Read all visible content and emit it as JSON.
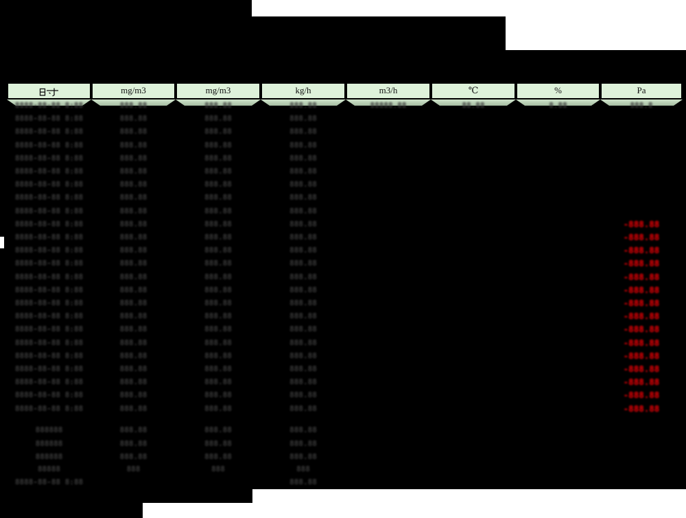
{
  "report": {
    "values_obscured": true,
    "colors": {
      "background": "#000000",
      "header_bg": "#def2da",
      "subheader_bg": "#aec5aa",
      "border": "#000000",
      "blob_text": "#3b3b3b",
      "alarm_text": "#fa0106",
      "blank_patch": "#ffffff"
    },
    "table": {
      "unit_header": [
        "时间",
        "mg/m3",
        "mg/m3",
        "kg/h",
        "m3/h",
        "℃",
        "%",
        "Pa"
      ],
      "data_rows": [
        {
          "time": "8888-88-88 8:88",
          "v1": "888.88",
          "v2": "888.88",
          "v3": "888.88",
          "v4": "88888.88",
          "v5": "88.88",
          "v6": "8.88",
          "v7": "888.8",
          "pa": ""
        },
        {
          "time": "8888-88-88 8:88",
          "v1": "888.88",
          "v2": "888.88",
          "v3": "888.88",
          "pa": ""
        },
        {
          "time": "8888-88-88 8:88",
          "v1": "888.88",
          "v2": "888.88",
          "v3": "888.88",
          "pa": ""
        },
        {
          "time": "8888-88-88 8:88",
          "v1": "888.88",
          "v2": "888.88",
          "v3": "888.88",
          "pa": ""
        },
        {
          "time": "8888-88-88 8:88",
          "v1": "888.88",
          "v2": "888.88",
          "v3": "888.88",
          "pa": ""
        },
        {
          "time": "8888-88-88 8:88",
          "v1": "888.88",
          "v2": "888.88",
          "v3": "888.88",
          "pa": ""
        },
        {
          "time": "8888-88-88 8:88",
          "v1": "888.88",
          "v2": "888.88",
          "v3": "888.88",
          "pa": ""
        },
        {
          "time": "8888-88-88 8:88",
          "v1": "888.88",
          "v2": "888.88",
          "v3": "888.88",
          "pa": ""
        },
        {
          "time": "8888-88-88 8:88",
          "v1": "888.88",
          "v2": "888.88",
          "v3": "888.88",
          "pa": ""
        },
        {
          "time": "8888-88-88 8:88",
          "v1": "888.88",
          "v2": "888.88",
          "v3": "888.88",
          "pa": "-888.88"
        },
        {
          "time": "8888-88-88 8:88",
          "v1": "888.88",
          "v2": "888.88",
          "v3": "888.88",
          "pa": "-888.88"
        },
        {
          "time": "8888-88-88 8:88",
          "v1": "888.88",
          "v2": "888.88",
          "v3": "888.88",
          "pa": "-888.88"
        },
        {
          "time": "8888-88-88 8:88",
          "v1": "888.88",
          "v2": "888.88",
          "v3": "888.88",
          "pa": "-888.88"
        },
        {
          "time": "8888-88-88 8:88",
          "v1": "888.88",
          "v2": "888.88",
          "v3": "888.88",
          "pa": "-888.88"
        },
        {
          "time": "8888-88-88 8:88",
          "v1": "888.88",
          "v2": "888.88",
          "v3": "888.88",
          "pa": "-888.88"
        },
        {
          "time": "8888-88-88 8:88",
          "v1": "888.88",
          "v2": "888.88",
          "v3": "888.88",
          "pa": "-888.88"
        },
        {
          "time": "8888-88-88 8:88",
          "v1": "888.88",
          "v2": "888.88",
          "v3": "888.88",
          "pa": "-888.88"
        },
        {
          "time": "8888-88-88 8:88",
          "v1": "888.88",
          "v2": "888.88",
          "v3": "888.88",
          "pa": "-888.88"
        },
        {
          "time": "8888-88-88 8:88",
          "v1": "888.88",
          "v2": "888.88",
          "v3": "888.88",
          "pa": "-888.88"
        },
        {
          "time": "8888-88-88 8:88",
          "v1": "888.88",
          "v2": "888.88",
          "v3": "888.88",
          "pa": "-888.88"
        },
        {
          "time": "8888-88-88 8:88",
          "v1": "888.88",
          "v2": "888.88",
          "v3": "888.88",
          "pa": "-888.88"
        },
        {
          "time": "8888-88-88 8:88",
          "v1": "888.88",
          "v2": "888.88",
          "v3": "888.88",
          "pa": "-888.88"
        },
        {
          "time": "8888-88-88 8:88",
          "v1": "888.88",
          "v2": "888.88",
          "v3": "888.88",
          "pa": "-888.88"
        },
        {
          "time": "8888-88-88 8:88",
          "v1": "888.88",
          "v2": "888.88",
          "v3": "888.88",
          "pa": "-888.88"
        }
      ],
      "summary_rows": [
        {
          "label": "888888",
          "v1": "888.88",
          "v2": "888.88",
          "v3": "888.88"
        },
        {
          "label": "888888",
          "v1": "888.88",
          "v2": "888.88",
          "v3": "888.88"
        },
        {
          "label": "888888",
          "v1": "888.88",
          "v2": "888.88",
          "v3": "888.88"
        },
        {
          "label": "88888",
          "v1": "888",
          "v2": "888",
          "v3": "888"
        },
        {
          "label": "8888-88-88 8:88",
          "v1": "",
          "v2": "",
          "v3": "888.88"
        }
      ]
    }
  }
}
